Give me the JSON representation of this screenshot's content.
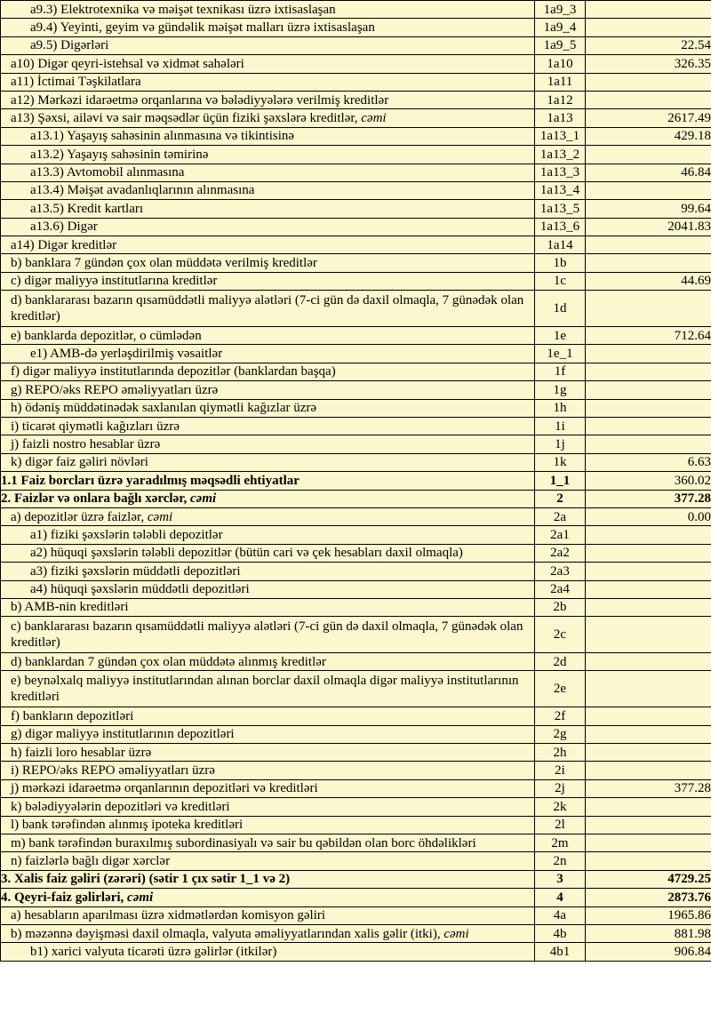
{
  "colors": {
    "cell_bg": "#FBF7CE",
    "value_bg": "#FFFFFF",
    "border": "#000000",
    "text": "#000000"
  },
  "table": {
    "columns": {
      "label": "",
      "code": "",
      "value": ""
    },
    "rows": [
      {
        "label": "a9.3) Elektrotexnika və məişət texnikası üzrə ixtisaslaşan",
        "code": "1a9_3",
        "value": "",
        "indent": 2
      },
      {
        "label": "a9.4) Yeyinti, geyim və gündəlik məişət malları üzrə ixtisaslaşan",
        "code": "1a9_4",
        "value": "",
        "indent": 2
      },
      {
        "label": "a9.5) Digərləri",
        "code": "1a9_5",
        "value": "22.54",
        "indent": 2
      },
      {
        "label": "a10) Digər qeyri-istehsal və xidmət sahələri",
        "code": "1a10",
        "value": "326.35",
        "indent": 1
      },
      {
        "label": "a11) İctimai Təşkilatlara",
        "code": "1a11",
        "value": "",
        "indent": 1
      },
      {
        "label": "a12) Mərkəzi  idarəetmə orqanlarına və bələdiyyələrə verilmiş kreditlər",
        "code": "1a12",
        "value": "",
        "indent": 1
      },
      {
        "label": "a13) Şəxsi, ailəvi və sair məqsədlər üçün fiziki şəxslərə kreditlər, ",
        "label_italic": "cəmi",
        "code": "1a13",
        "value": "2617.49",
        "indent": 1,
        "value_highlight": true
      },
      {
        "label": "a13.1) Yaşayış sahəsinin alınmasına və tikintisinə",
        "code": "1a13_1",
        "value": "429.18",
        "indent": 2
      },
      {
        "label": "a13.2) Yaşayış sahəsinin təmirinə",
        "code": "1a13_2",
        "value": "",
        "indent": 2
      },
      {
        "label": "a13.3) Avtomobil alınmasına",
        "code": "1a13_3",
        "value": "46.84",
        "indent": 2
      },
      {
        "label": "a13.4) Məişət avadanlıqlarının alınmasına",
        "code": "1a13_4",
        "value": "",
        "indent": 2
      },
      {
        "label": "a13.5) Kredit kartları",
        "code": "1a13_5",
        "value": "99.64",
        "indent": 2
      },
      {
        "label": "a13.6) Digər",
        "code": "1a13_6",
        "value": "2041.83",
        "indent": 2
      },
      {
        "label": "a14) Digər kreditlər",
        "code": "1a14",
        "value": "",
        "indent": 1
      },
      {
        "label": "b) banklara 7 gündən çox olan müddətə verilmiş kreditlər",
        "code": "1b",
        "value": "",
        "indent": 1
      },
      {
        "label": "c) digər maliyyə institutlarına kreditlər",
        "code": "1c",
        "value": "44.69",
        "indent": 1
      },
      {
        "label": "d) banklararası bazarın qısamüddətli maliyyə alətləri (7-ci gün də daxil olmaqla, 7 günədək olan kreditlər)",
        "code": "1d",
        "value": "",
        "indent": 1,
        "tall": true
      },
      {
        "label": "e) banklarda depozitlər, o cümlədən",
        "code": "1e",
        "value": "712.64",
        "indent": 1
      },
      {
        "label": "e1)  AMB-də yerləşdirilmiş vəsaitlər",
        "code": "1e_1",
        "value": "",
        "indent": 2
      },
      {
        "label": "f) digər maliyyə institutlarında depozitlər (banklardan başqa)",
        "code": "1f",
        "value": "",
        "indent": 1
      },
      {
        "label": "g) REPO/əks REPO əməliyyatları üzrə",
        "code": "1g",
        "value": "",
        "indent": 1
      },
      {
        "label": "h) ödəniş müddətinədək saxlanılan qiymətli kağızlar üzrə",
        "code": "1h",
        "value": "",
        "indent": 1
      },
      {
        "label": "i) ticarət qiymətli kağızları üzrə",
        "code": "1i",
        "value": "",
        "indent": 1
      },
      {
        "label": "j) faizli nostro hesablar üzrə",
        "code": "1j",
        "value": "",
        "indent": 1
      },
      {
        "label": "k) digər faiz gəliri növləri",
        "code": "1k",
        "value": "6.63",
        "indent": 1
      },
      {
        "label": "1.1 Faiz borcları üzrə yaradılmış məqsədli ehtiyatlar",
        "code": "1_1",
        "value": "360.02",
        "indent": 0,
        "bold": true,
        "code_bold": true
      },
      {
        "label": "2. Faizlər və onlara bağlı xərclər, ",
        "label_italic": "cəmi",
        "code": "2",
        "value": "377.28",
        "indent": 0,
        "bold": true,
        "code_bold": true,
        "value_bold": true,
        "value_highlight": true
      },
      {
        "label": "a) depozitlər üzrə faizlər, ",
        "label_italic": "cəmi",
        "code": "2a",
        "value": "0.00",
        "indent": 1,
        "value_highlight": true
      },
      {
        "label": "a1) fiziki şəxslərin tələbli depozitlər",
        "code": "2a1",
        "value": "",
        "indent": 2
      },
      {
        "label": "a2) hüquqi şəxslərin tələbli depozitlər (bütün cari və çek hesabları daxil olmaqla)",
        "code": "2a2",
        "value": "",
        "indent": 2
      },
      {
        "label": "a3) fiziki şəxslərin müddətli depozitləri",
        "code": "2a3",
        "value": "",
        "indent": 2
      },
      {
        "label": "a4) hüquqi şəxslərin müddətli depozitləri",
        "code": "2a4",
        "value": "",
        "indent": 2
      },
      {
        "label": "b) AMB-nin kreditləri",
        "code": "2b",
        "value": "",
        "indent": 1
      },
      {
        "label": "c) banklararası bazarın qısamüddətli maliyyə alətləri (7-ci gün də daxil olmaqla, 7 günədək olan kreditlər)",
        "code": "2c",
        "value": "",
        "indent": 1,
        "tall": true
      },
      {
        "label": "d) banklardan 7 gündən çox olan müddətə alınmış kreditlər",
        "code": "2d",
        "value": "",
        "indent": 1
      },
      {
        "label": "e) beynəlxalq maliyyə institutlarından alınan borclar daxil olmaqla digər maliyyə institutlarının kreditləri",
        "code": "2e",
        "value": "",
        "indent": 1,
        "tall": true
      },
      {
        "label": "f) bankların depozitləri",
        "code": "2f",
        "value": "",
        "indent": 1
      },
      {
        "label": "g) digər maliyyə institutlarının depozitləri",
        "code": "2g",
        "value": "",
        "indent": 1
      },
      {
        "label": "h) faizli loro hesablar üzrə",
        "code": "2h",
        "value": "",
        "indent": 1
      },
      {
        "label": "i) REPO/əks REPO əməliyyatları üzrə",
        "code": "2i",
        "value": "",
        "indent": 1
      },
      {
        "label": "j) mərkəzi idarəetmə orqanlarının depozitləri və kreditləri",
        "code": "2j",
        "value": "377.28",
        "indent": 1
      },
      {
        "label": "k) bələdiyyələrin depozitləri və kreditləri",
        "code": "2k",
        "value": "",
        "indent": 1
      },
      {
        "label": "l) bank tərəfindən alınmış ipoteka kreditləri",
        "code": "2l",
        "value": "",
        "indent": 1
      },
      {
        "label": "m) bank tərəfindən buraxılmış subordinasiyalı və sair bu qəbildən olan borc öhdəlikləri",
        "code": "2m",
        "value": "",
        "indent": 1
      },
      {
        "label": "n) faizlərlə bağlı digər xərclər",
        "code": "2n",
        "value": "",
        "indent": 1
      },
      {
        "label": "3. Xalis faiz gəliri (zərəri) (sətir 1 çıx sətir 1_1 və 2)",
        "code": "3",
        "value": "4729.25",
        "indent": 0,
        "bold": true,
        "code_bold": true,
        "value_bold": true,
        "value_highlight": true
      },
      {
        "label": "4. Qeyri-faiz gəlirləri, ",
        "label_italic": "cəmi",
        "code": "4",
        "value": "2873.76",
        "indent": 0,
        "bold": true,
        "code_bold": true,
        "value_bold": true,
        "value_highlight": true
      },
      {
        "label": "a) hesabların aparılması üzrə xidmətlərdən komisyon gəliri",
        "code": "4a",
        "value": "1965.86",
        "indent": 1
      },
      {
        "label": "b) məzənnə dəyişməsi daxil olmaqla, valyuta əməliyyatlarından xalis gəlir (itki), ",
        "label_italic": "cəmi",
        "code": "4b",
        "value": "881.98",
        "indent": 1,
        "value_highlight": true
      },
      {
        "label": "b1) xarici valyuta ticarəti üzrə gəlirlər (itkilər)",
        "code": "4b1",
        "value": "906.84",
        "indent": 2
      }
    ]
  }
}
